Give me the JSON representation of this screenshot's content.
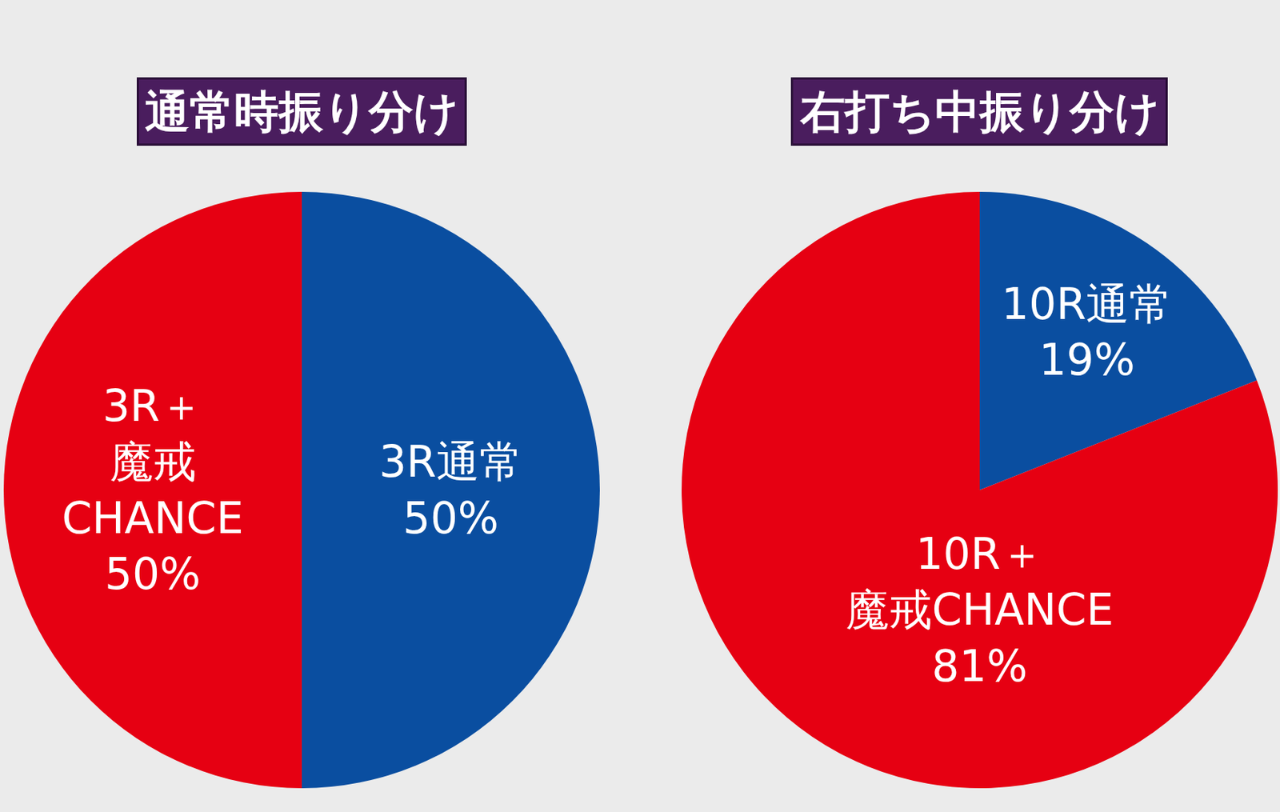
{
  "chart_data": [
    {
      "type": "pie",
      "title": "通常時振り分け",
      "labels": [
        "3R通常",
        "3R＋\n魔戒\nCHANCE"
      ],
      "values": [
        50,
        50
      ],
      "value_labels": [
        "50%",
        "50%"
      ],
      "colors": [
        "#0a4ea0",
        "#e60012"
      ],
      "data_labels": true
    },
    {
      "type": "pie",
      "title": "右打ち中振り分け",
      "labels": [
        "10R通常",
        "10R＋\n魔戒CHANCE"
      ],
      "values": [
        19,
        81
      ],
      "value_labels": [
        "19%",
        "81%"
      ],
      "colors": [
        "#0a4ea0",
        "#e60012"
      ],
      "data_labels": true
    }
  ]
}
